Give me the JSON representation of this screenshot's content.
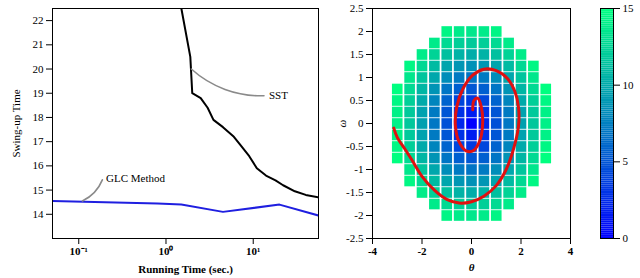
{
  "chart_data": [
    {
      "type": "line",
      "x_label": "Running Time (sec.)",
      "y_label": "Swing-up Time",
      "log": "x",
      "xlim": [
        0.05,
        56
      ],
      "xticks": [
        {
          "value": 0.1,
          "label": "10⁻¹"
        },
        {
          "value": 1,
          "label": "10⁰"
        },
        {
          "value": 10,
          "label": "10¹"
        }
      ],
      "ylim": [
        13,
        22.5
      ],
      "yticks": [
        14,
        15,
        16,
        17,
        18,
        19,
        20,
        21,
        22
      ],
      "series": [
        {
          "name": "SST",
          "color": "#000000",
          "x": [
            1.5,
            1.9,
            2.0,
            2.5,
            3.0,
            3.5,
            4.5,
            6,
            7,
            9,
            11,
            14,
            18,
            22,
            30,
            40,
            56
          ],
          "values": [
            22.5,
            20.5,
            19.0,
            18.8,
            18.4,
            17.9,
            17.6,
            17.2,
            16.9,
            16.4,
            15.9,
            15.6,
            15.4,
            15.2,
            14.95,
            14.8,
            14.7
          ]
        },
        {
          "name": "GLC Method",
          "color": "#1f1fe0",
          "x": [
            0.05,
            0.8,
            1.5,
            4.5,
            20,
            56
          ],
          "values": [
            14.55,
            14.45,
            14.4,
            14.1,
            14.4,
            13.95
          ]
        }
      ],
      "annotations": [
        {
          "text": "SST",
          "x": 14,
          "y": 18.9,
          "arrow_to": [
            1.95,
            20.0
          ]
        },
        {
          "text": "GLC Method",
          "x": 0.19,
          "y": 15.5,
          "arrow_to": [
            0.11,
            14.55
          ]
        }
      ]
    },
    {
      "type": "scatter",
      "x_label": "θ",
      "y_label": "ω",
      "xlim": [
        -4,
        4
      ],
      "xticks": [
        -4,
        -2,
        0,
        2,
        4
      ],
      "ylim": [
        -2.5,
        2.5
      ],
      "yticks": [
        -2.5,
        -2,
        -1.5,
        -1,
        -0.5,
        0,
        0.5,
        1,
        1.5,
        2,
        2.5
      ],
      "theta": [
        -3,
        -2.5,
        -2,
        -1.5,
        -1,
        -0.5,
        0,
        0.5,
        1,
        1.5,
        2,
        2.5,
        3
      ],
      "omega": [
        -2,
        -1.75,
        -1.5,
        -1.25,
        -1,
        -0.75,
        -0.5,
        -0.25,
        0,
        0.25,
        0.5,
        0.75,
        1,
        1.25,
        1.5,
        1.75,
        2
      ],
      "cost": [
        [
          null,
          null,
          null,
          null,
          14.4,
          13.8,
          13.6,
          13.8,
          14.4,
          null,
          null,
          null,
          null
        ],
        [
          null,
          null,
          null,
          13.8,
          12.8,
          12.2,
          11.9,
          12.2,
          12.8,
          13.8,
          null,
          null,
          null
        ],
        [
          null,
          null,
          13.9,
          12.4,
          11.3,
          10.5,
          10.2,
          10.5,
          11.3,
          12.4,
          13.9,
          null,
          null
        ],
        [
          null,
          14.5,
          12.7,
          11.0,
          9.7,
          8.8,
          8.5,
          8.8,
          9.7,
          11.0,
          12.7,
          14.5,
          null
        ],
        [
          null,
          13.6,
          11.6,
          9.8,
          8.3,
          7.2,
          6.8,
          7.2,
          8.3,
          9.8,
          11.6,
          13.6,
          null
        ],
        [
          15.0,
          12.8,
          10.7,
          8.7,
          6.9,
          5.6,
          5.1,
          5.6,
          6.9,
          8.7,
          10.7,
          12.8,
          15.0
        ],
        [
          14.5,
          12.2,
          10.0,
          7.8,
          5.8,
          4.1,
          3.4,
          4.1,
          5.8,
          7.8,
          10.0,
          12.2,
          14.5
        ],
        [
          14.2,
          11.8,
          9.5,
          7.2,
          5.0,
          2.9,
          1.7,
          2.9,
          5.0,
          7.2,
          9.5,
          11.8,
          14.2
        ],
        [
          14.1,
          11.7,
          9.4,
          7.0,
          4.7,
          2.3,
          0,
          2.3,
          4.7,
          7.0,
          9.4,
          11.7,
          14.1
        ],
        [
          14.2,
          11.8,
          9.5,
          7.2,
          5.0,
          2.9,
          1.7,
          2.9,
          5.0,
          7.2,
          9.5,
          11.8,
          14.2
        ],
        [
          14.5,
          12.2,
          10.0,
          7.8,
          5.8,
          4.1,
          3.4,
          4.1,
          5.8,
          7.8,
          10.0,
          12.2,
          14.5
        ],
        [
          15.0,
          12.8,
          10.7,
          8.7,
          6.9,
          5.6,
          5.1,
          5.6,
          6.9,
          8.7,
          10.7,
          12.8,
          15.0
        ],
        [
          null,
          13.6,
          11.6,
          9.8,
          8.3,
          7.2,
          6.8,
          7.2,
          8.3,
          9.8,
          11.6,
          13.6,
          null
        ],
        [
          null,
          14.5,
          12.7,
          11.0,
          9.7,
          8.8,
          8.5,
          8.8,
          9.7,
          11.0,
          12.7,
          14.5,
          null
        ],
        [
          null,
          null,
          13.9,
          12.4,
          11.3,
          10.5,
          10.2,
          10.5,
          11.3,
          12.4,
          13.9,
          null,
          null
        ],
        [
          null,
          null,
          null,
          13.8,
          12.8,
          12.2,
          11.9,
          12.2,
          12.8,
          13.8,
          null,
          null,
          null
        ],
        [
          null,
          null,
          null,
          null,
          14.4,
          13.8,
          13.6,
          13.8,
          14.4,
          null,
          null,
          null,
          null
        ]
      ],
      "colorbar": {
        "range": [
          0,
          15
        ],
        "ticks": [
          0,
          5,
          10,
          15
        ],
        "colors": [
          "#0000ff",
          "#00ff80"
        ]
      },
      "trajectory": {
        "color": "#e01010",
        "x": [
          -3.14,
          -3.0,
          -2.7,
          -2.4,
          -2.0,
          -1.5,
          -1.0,
          -0.5,
          0.0,
          0.5,
          1.0,
          1.4,
          1.7,
          1.9,
          1.9,
          1.75,
          1.45,
          1.0,
          0.5,
          0.05,
          -0.35,
          -0.6,
          -0.65,
          -0.5,
          -0.2,
          0.1,
          0.35,
          0.45,
          0.4,
          0.25,
          0.1,
          0.05
        ],
        "y": [
          -0.1,
          -0.3,
          -0.55,
          -0.8,
          -1.15,
          -1.45,
          -1.65,
          -1.73,
          -1.7,
          -1.58,
          -1.35,
          -1.0,
          -0.55,
          -0.05,
          0.35,
          0.7,
          0.98,
          1.15,
          1.18,
          1.05,
          0.75,
          0.35,
          -0.05,
          -0.4,
          -0.6,
          -0.58,
          -0.35,
          0.0,
          0.35,
          0.55,
          0.5,
          0.3
        ]
      }
    }
  ]
}
